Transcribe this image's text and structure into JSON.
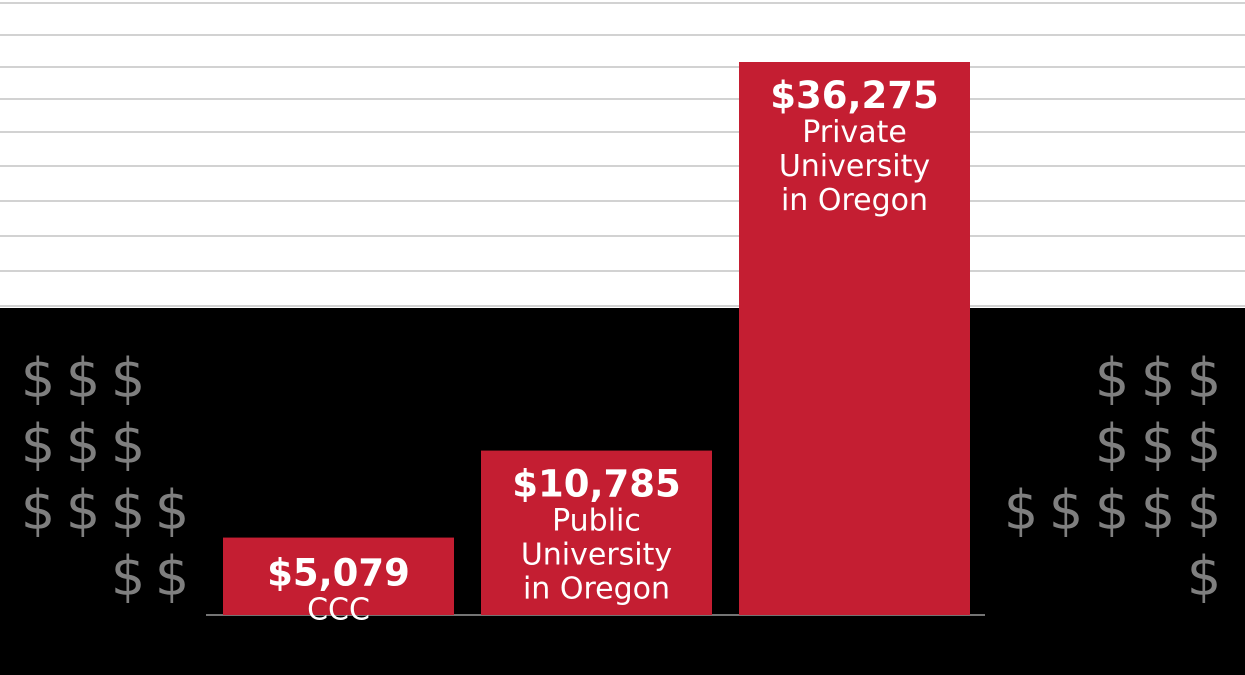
{
  "chart_data": {
    "type": "bar",
    "categories": [
      "CCC",
      "Public University in Oregon",
      "Private University in Oregon"
    ],
    "values": [
      5079,
      10785,
      36275
    ],
    "value_labels": [
      "$5,079",
      "$10,785",
      "$36,275"
    ],
    "label_lines": [
      [
        "CCC"
      ],
      [
        "Public",
        "University",
        "in Oregon"
      ],
      [
        "Private",
        "University",
        "in Oregon"
      ]
    ],
    "ylim": [
      0,
      40000
    ],
    "grid": true,
    "bar_color": "#c41e32",
    "decoration_symbol": "$",
    "colors": {
      "background_lower": "#000000",
      "background_upper": "#ffffff",
      "grid": "#d2d2d2",
      "symbol": "#7f7f7f"
    }
  }
}
